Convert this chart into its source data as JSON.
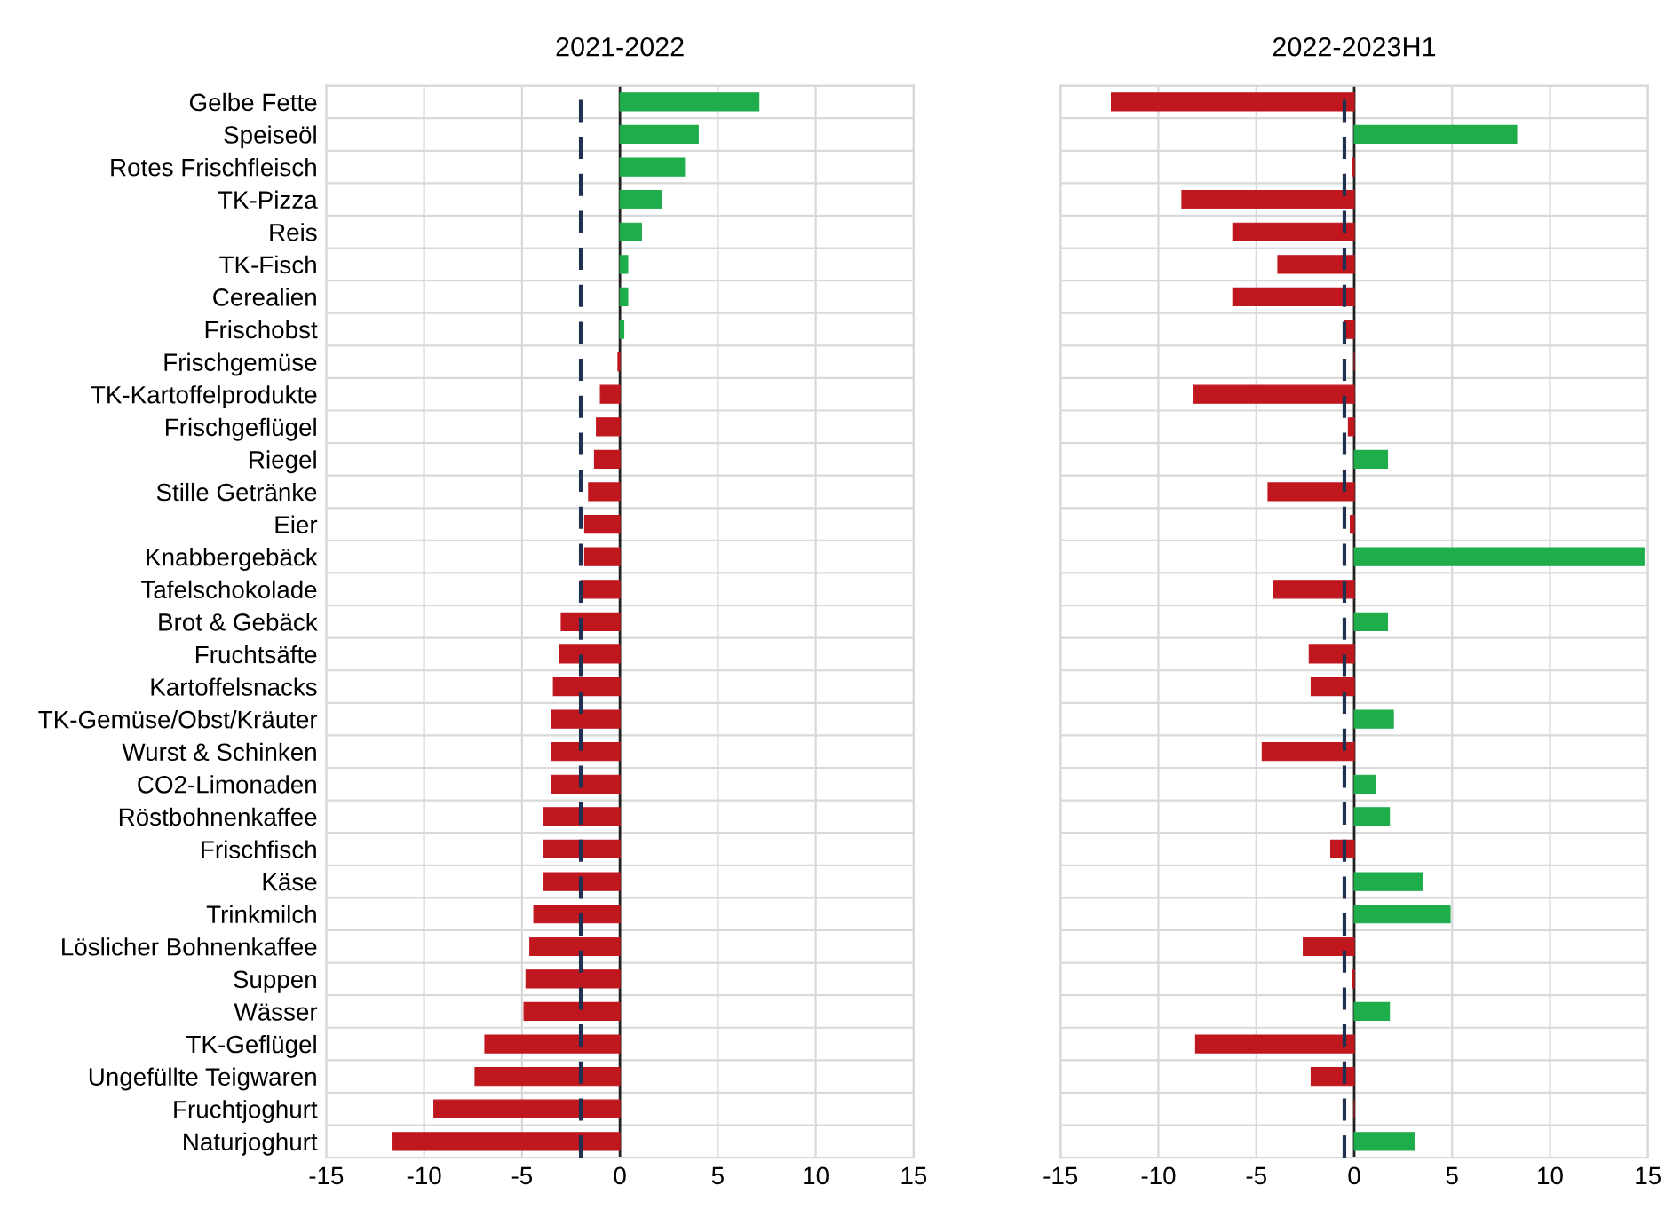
{
  "chart_data": [
    {
      "type": "bar",
      "orientation": "horizontal",
      "title": "2021-2022",
      "categories": [
        "Gelbe Fette",
        "Speiseöl",
        "Rotes Frischfleisch",
        "TK-Pizza",
        "Reis",
        "TK-Fisch",
        "Cerealien",
        "Frischobst",
        "Frischgemüse",
        "TK-Kartoffelprodukte",
        "Frischgeflügel",
        "Riegel",
        "Stille Getränke",
        "Eier",
        "Knabbergebäck",
        "Tafelschokolade",
        "Brot & Gebäck",
        "Fruchtsäfte",
        "Kartoffelsnacks",
        "TK-Gemüse/Obst/Kräuter",
        "Wurst & Schinken",
        "CO2-Limonaden",
        "Röstbohnenkaffee",
        "Frischfisch",
        "Käse",
        "Trinkmilch",
        "Löslicher Bohnenkaffee",
        "Suppen",
        "Wässer",
        "TK-Geflügel",
        "Ungefüllte Teigwaren",
        "Fruchtjoghurt",
        "Naturjoghurt"
      ],
      "values": [
        7.1,
        4.0,
        3.3,
        2.1,
        1.1,
        0.4,
        0.4,
        0.2,
        -0.1,
        -1.0,
        -1.2,
        -1.3,
        -1.6,
        -1.8,
        -1.8,
        -2.0,
        -3.0,
        -3.1,
        -3.4,
        -3.5,
        -3.5,
        -3.5,
        -3.9,
        -3.9,
        -3.9,
        -4.4,
        -4.6,
        -4.8,
        -4.9,
        -6.9,
        -7.4,
        -9.5,
        -11.6
      ],
      "colors": [
        "#1fad4b",
        "#1fad4b",
        "#1fad4b",
        "#1fad4b",
        "#1fad4b",
        "#1fad4b",
        "#1fad4b",
        "#1fad4b",
        "#c0171f",
        "#c0171f",
        "#c0171f",
        "#c0171f",
        "#c0171f",
        "#c0171f",
        "#c0171f",
        "#c0171f",
        "#c0171f",
        "#c0171f",
        "#c0171f",
        "#c0171f",
        "#c0171f",
        "#c0171f",
        "#c0171f",
        "#c0171f",
        "#c0171f",
        "#c0171f",
        "#c0171f",
        "#c0171f",
        "#c0171f",
        "#c0171f",
        "#c0171f",
        "#c0171f",
        "#c0171f"
      ],
      "xlim": [
        -15,
        15
      ],
      "xticks": [
        -15,
        -10,
        -5,
        0,
        5,
        10,
        15
      ],
      "grid": true,
      "ref_lines": [
        {
          "axis": "x",
          "value": -2.0,
          "color": "#1f3050",
          "line_style": "dashed"
        }
      ]
    },
    {
      "type": "bar",
      "orientation": "horizontal",
      "title": "2022-2023H1",
      "categories": [
        null,
        null,
        null,
        null,
        null,
        null,
        null,
        null,
        null,
        null,
        null,
        null,
        null,
        null,
        null,
        null,
        null,
        null,
        null,
        null,
        null,
        null,
        null,
        null,
        null,
        null,
        null,
        null,
        null,
        null,
        null,
        null,
        null
      ],
      "values": [
        -12.4,
        8.3,
        -0.1,
        -8.8,
        -6.2,
        -3.9,
        -6.2,
        -0.5,
        0,
        -8.2,
        -0.3,
        1.7,
        -4.4,
        -0.2,
        14.8,
        -4.1,
        1.7,
        -2.3,
        -2.2,
        2.0,
        -4.7,
        1.1,
        1.8,
        -1.2,
        3.5,
        4.9,
        -2.6,
        -0.1,
        1.8,
        -8.1,
        -2.2,
        0,
        3.1
      ],
      "colors": [
        "#c0171f",
        "#1fad4b",
        "#c0171f",
        "#c0171f",
        "#c0171f",
        "#c0171f",
        "#c0171f",
        "#c0171f",
        "#c0171f",
        "#c0171f",
        "#c0171f",
        "#1fad4b",
        "#c0171f",
        "#c0171f",
        "#1fad4b",
        "#c0171f",
        "#1fad4b",
        "#c0171f",
        "#c0171f",
        "#1fad4b",
        "#c0171f",
        "#1fad4b",
        "#1fad4b",
        "#c0171f",
        "#1fad4b",
        "#1fad4b",
        "#c0171f",
        "#c0171f",
        "#1fad4b",
        "#c0171f",
        "#c0171f",
        "#c0171f",
        "#1fad4b"
      ],
      "xlim": [
        -15,
        15
      ],
      "xticks": [
        -15,
        -10,
        -5,
        0,
        5,
        10,
        15
      ],
      "grid": true,
      "tick_labels": "x",
      "ref_lines": [
        {
          "axis": "x",
          "value": -0.5,
          "color": "#1f3050",
          "line_style": "dashed"
        }
      ]
    }
  ]
}
